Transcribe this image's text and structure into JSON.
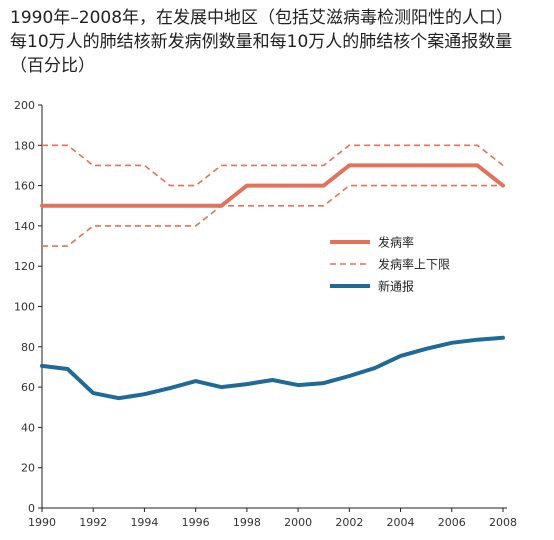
{
  "title_lines": [
    "1990年–2008年，在发展中地区（包括艾滋病毒检测阳性的人口）",
    "每10万人的肺结核新发病例数量和每10万人的肺结核个案通报数量",
    "（百分比）"
  ],
  "chart_data": {
    "type": "line",
    "title": "1990年–2008年，在发展中地区（包括艾滋病毒检测阳性的人口）每10万人的肺结核新发病例数量和每10万人的肺结核个案通报数量（百分比）",
    "xlabel": "",
    "ylabel": "",
    "xlim": [
      1990,
      2008
    ],
    "ylim": [
      0,
      200
    ],
    "x_ticks": [
      1990,
      1992,
      1994,
      1996,
      1998,
      2000,
      2002,
      2004,
      2006,
      2008
    ],
    "y_ticks": [
      0,
      20,
      40,
      60,
      80,
      100,
      120,
      140,
      160,
      180,
      200
    ],
    "grid": false,
    "legend_position": "right-middle",
    "x": [
      1990,
      1991,
      1992,
      1993,
      1994,
      1995,
      1996,
      1997,
      1998,
      1999,
      2000,
      2001,
      2002,
      2003,
      2004,
      2005,
      2006,
      2007,
      2008
    ],
    "series": [
      {
        "name": "发病率",
        "style": "solid-thick",
        "color": "#e0735a",
        "values": [
          150,
          150,
          150,
          150,
          150,
          150,
          150,
          150,
          160,
          160,
          160,
          160,
          170,
          170,
          170,
          170,
          170,
          170,
          160
        ]
      },
      {
        "name": "发病率上下限",
        "style": "dashed",
        "color": "#e0735a",
        "values": [
          180,
          180,
          170,
          170,
          170,
          160,
          160,
          170,
          170,
          170,
          170,
          170,
          180,
          180,
          180,
          180,
          180,
          180,
          170
        ]
      },
      {
        "name": "",
        "legend_group": "发病率上下限",
        "style": "dashed",
        "color": "#e0735a",
        "values": [
          130,
          130,
          140,
          140,
          140,
          140,
          140,
          150,
          150,
          150,
          150,
          150,
          160,
          160,
          160,
          160,
          160,
          160,
          160
        ]
      },
      {
        "name": "新通报",
        "style": "solid-thick",
        "color": "#1f6a96",
        "values": [
          70.5,
          69,
          57,
          54.5,
          56.5,
          59.5,
          63,
          60,
          61.5,
          63.5,
          61,
          62,
          65.5,
          69.5,
          75.5,
          79,
          82,
          83.5,
          84.5
        ]
      }
    ],
    "legend": [
      {
        "label": "发病率",
        "style": "solid-thick",
        "color": "#e0735a"
      },
      {
        "label": "发病率上下限",
        "style": "dashed",
        "color": "#e0735a"
      },
      {
        "label": "新通报",
        "style": "solid-thick",
        "color": "#1f6a96"
      }
    ],
    "axis_color": "#222222"
  }
}
